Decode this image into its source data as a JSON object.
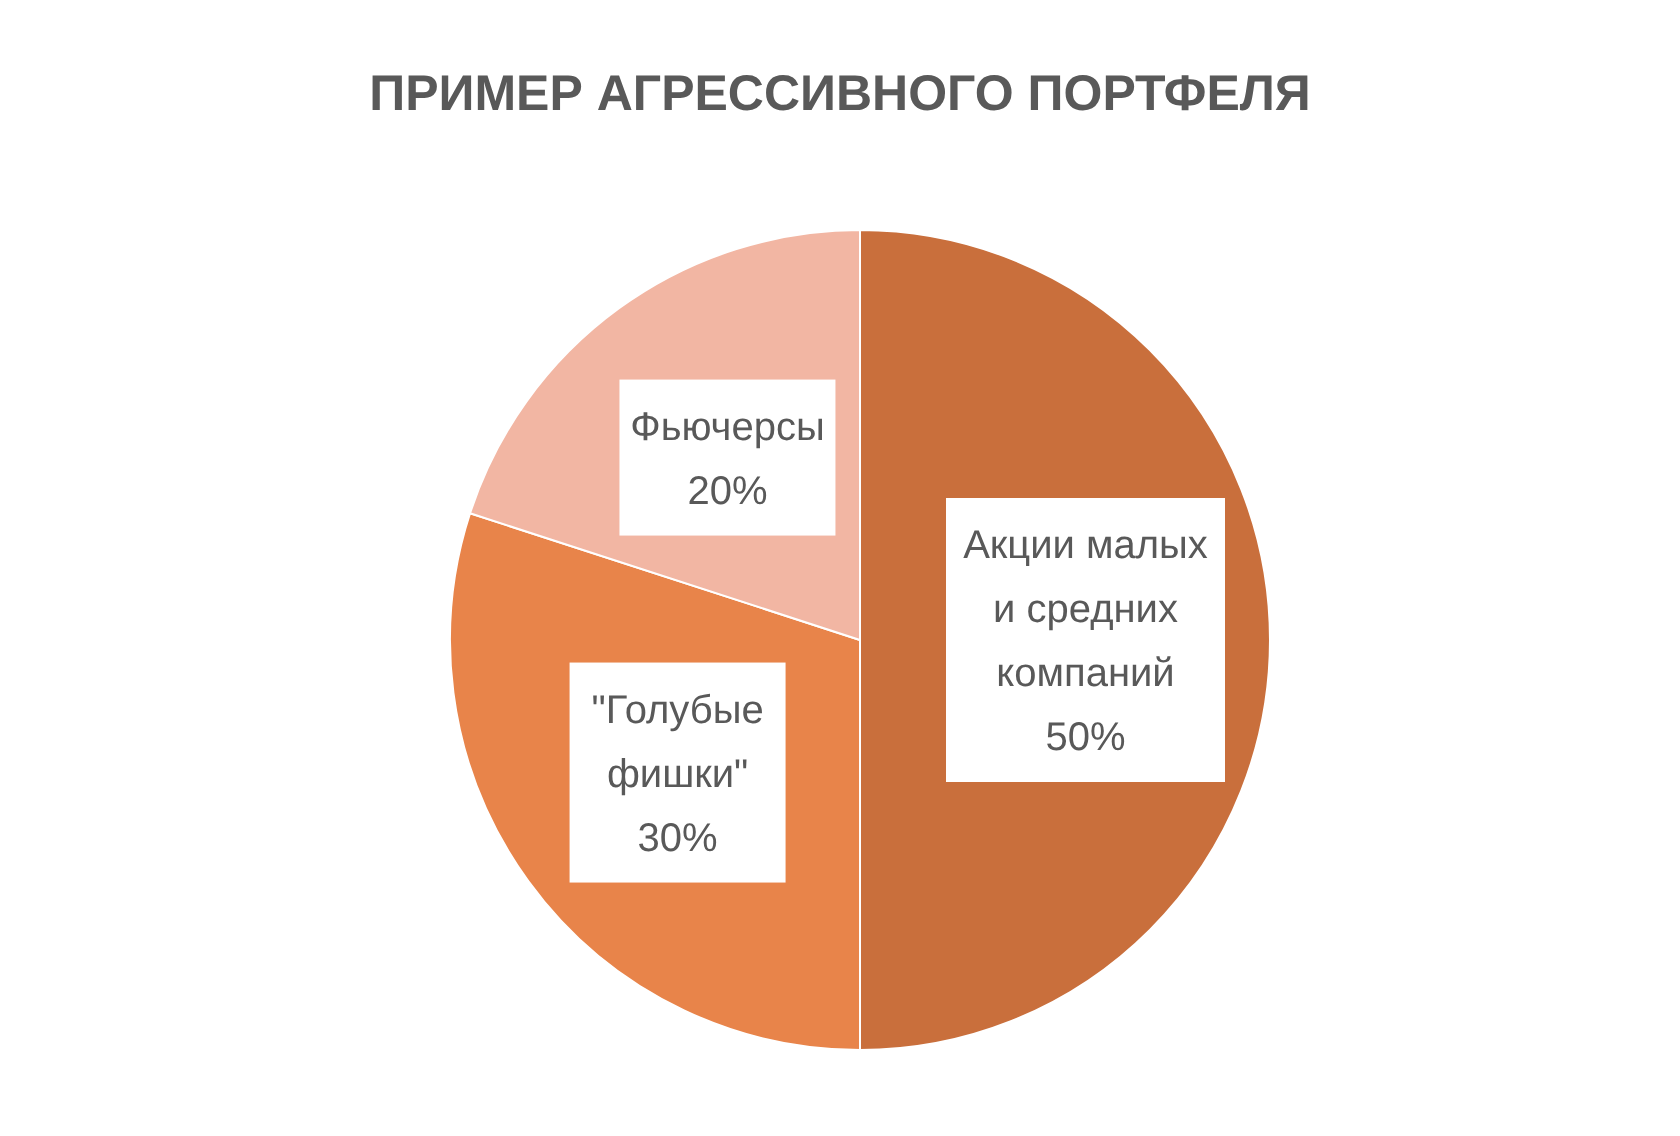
{
  "chart_data": {
    "type": "pie",
    "title": "ПРИМЕР АГРЕССИВНОГО ПОРТФЕЛЯ",
    "categories": [
      "Акции малых и средних компаний",
      "\"Голубые фишки\"",
      "Фьючерсы"
    ],
    "values": [
      50,
      30,
      20
    ],
    "value_labels": [
      "50%",
      "30%",
      "20%"
    ],
    "colors": [
      "#c96f3c",
      "#e8844a",
      "#f2b6a3"
    ]
  }
}
